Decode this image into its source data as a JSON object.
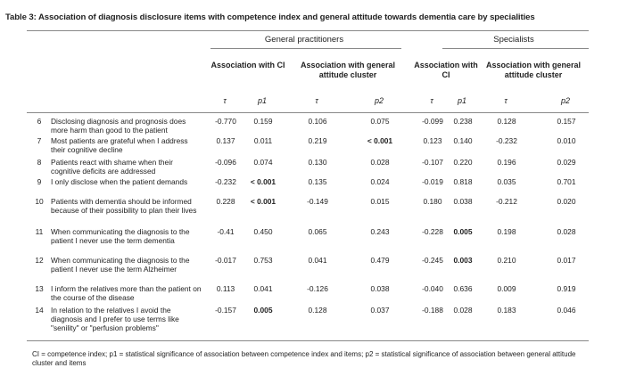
{
  "title": "Table 3: Association of diagnosis disclosure items with competence index and general attitude towards dementia care by specialities",
  "groups": {
    "gp": "General practitioners",
    "spec": "Specialists"
  },
  "subheaders": {
    "gp_ci": "Association with CI",
    "gp_gen": "Association with general attitude cluster",
    "spec_ci": "Association with CI",
    "spec_gen": "Association with general attitude cluster"
  },
  "stats": [
    "τ",
    "p1",
    "τ",
    "p2",
    "τ",
    "p1",
    "τ",
    "p2"
  ],
  "rows": [
    {
      "num": "6",
      "item": "Disclosing diagnosis and prognosis does more harm than good to the patient",
      "v": [
        "-0.770",
        "0.159",
        "0.106",
        "0.075",
        "-0.099",
        "0.238",
        "0.128",
        "0.157"
      ]
    },
    {
      "num": "7",
      "item": "Most patients are grateful when I address their cognitive decline",
      "v": [
        "0.137",
        "0.011",
        "0.219",
        "< 0.001",
        "0.123",
        "0.140",
        "-0.232",
        "0.010"
      ]
    },
    {
      "num": "8",
      "item": "Patients react with shame when their cognitive deficits are addressed",
      "v": [
        "-0.096",
        "0.074",
        "0.130",
        "0.028",
        "-0.107",
        "0.220",
        "0.196",
        "0.029"
      ]
    },
    {
      "num": "9",
      "item": "I only disclose when the patient demands",
      "v": [
        "-0.232",
        "< 0.001",
        "0.135",
        "0.024",
        "-0.019",
        "0.818",
        "0.035",
        "0.701"
      ]
    },
    {
      "num": "10",
      "item": "Patients with dementia should be informed because of their possibility to plan their lives",
      "v": [
        "0.228",
        "< 0.001",
        "-0.149",
        "0.015",
        "0.180",
        "0.038",
        "-0.212",
        "0.020"
      ]
    },
    {
      "num": "11",
      "item": "When communicating the diagnosis to the patient I never use the term dementia",
      "v": [
        "-0.41",
        "0.450",
        "0.065",
        "0.243",
        "-0.228",
        "0.005",
        "0.198",
        "0.028"
      ]
    },
    {
      "num": "12",
      "item": "When communicating the diagnosis to the patient I never use the term Alzheimer",
      "v": [
        "-0.017",
        "0.753",
        "0.041",
        "0.479",
        "-0.245",
        "0.003",
        "0.210",
        "0.017"
      ]
    },
    {
      "num": "13",
      "item": "I inform the relatives more than the patient on the course of the disease",
      "v": [
        "0.113",
        "0.041",
        "-0.126",
        "0.038",
        "-0.040",
        "0.636",
        "0.009",
        "0.919"
      ]
    },
    {
      "num": "14",
      "item": "In relation to the relatives I avoid the diagnosis and I prefer to use terms like \"senility\" or \"perfusion problems\"",
      "v": [
        "-0.157",
        "0.005",
        "0.128",
        "0.037",
        "-0.188",
        "0.028",
        "0.183",
        "0.046"
      ]
    }
  ],
  "bold_cells": [
    "1-3",
    "3-1",
    "4-1",
    "5-5",
    "6-5",
    "8-1"
  ],
  "footnote": "CI = competence index; p1 = statistical significance of association between competence index and items; p2 = statistical significance of association between general attitude cluster and items"
}
